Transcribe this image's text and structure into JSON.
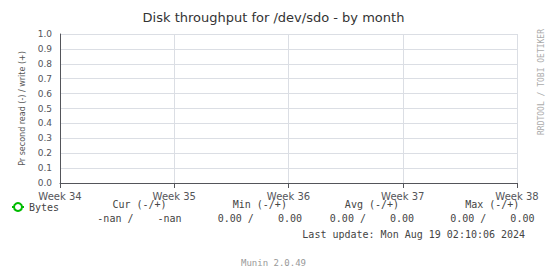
{
  "chart_data": {
    "type": "line",
    "title": "Disk throughput for /dev/sdo - by month",
    "y_label": "Pr second read (-) / write (+)",
    "categories": [
      "Week 34",
      "Week 35",
      "Week 36",
      "Week 37",
      "Week 38"
    ],
    "series": [
      {
        "name": "Bytes",
        "color": "#00bb00",
        "values": [
          null,
          null,
          null,
          null,
          null
        ]
      }
    ],
    "ylim": [
      0.0,
      1.0
    ],
    "yticks": [
      {
        "value": 0.0,
        "label": "0.0"
      },
      0.1,
      0.2,
      0.3,
      0.4,
      0.5,
      0.6,
      0.7,
      0.8,
      0.9,
      {
        "value": 1.0,
        "label": "1.0"
      }
    ],
    "grid": true,
    "legend": "bottom",
    "annotations": [
      "RRDTOOL / TOBI OETIKER",
      "Cur (-/+)",
      "Min (-/+)",
      "Avg (-/+)",
      "Max (-/+)",
      "-nan /    -nan",
      "0.00 /    0.00",
      "0.00 /    0.00",
      "0.00 /    0.00",
      "Last update: Mon Aug 19 02:10:06 2024",
      "Munin 2.0.49"
    ]
  }
}
